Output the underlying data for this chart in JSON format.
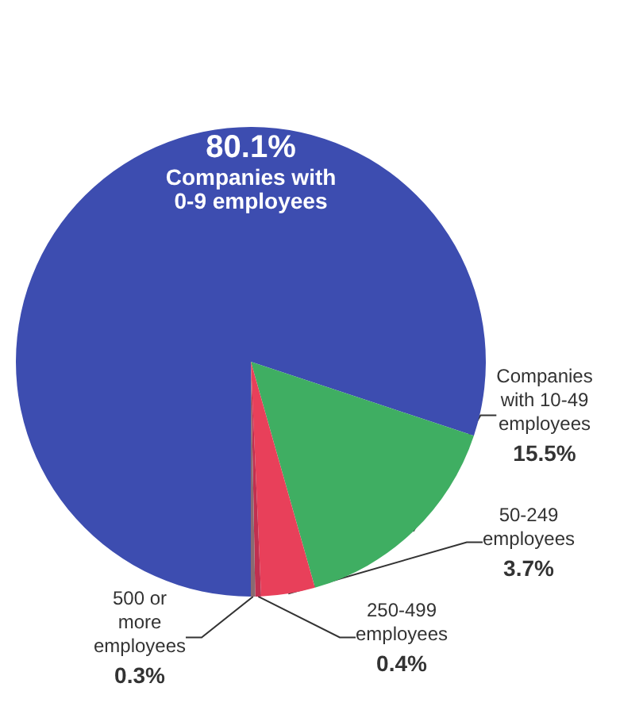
{
  "chart_data": {
    "type": "pie",
    "categories": [
      "Companies with 0-9 employees",
      "Companies with 10-49 employees",
      "50-249 employees",
      "250-499 employees",
      "500 or more employees"
    ],
    "values": [
      80.1,
      15.5,
      3.7,
      0.4,
      0.3
    ],
    "colors": [
      "#3d4db0",
      "#3fae62",
      "#e8405a",
      "#c03050",
      "#8a6a70"
    ],
    "value_labels": [
      "80.1%",
      "15.5%",
      "3.7%",
      "0.4%",
      "0.3%"
    ]
  }
}
